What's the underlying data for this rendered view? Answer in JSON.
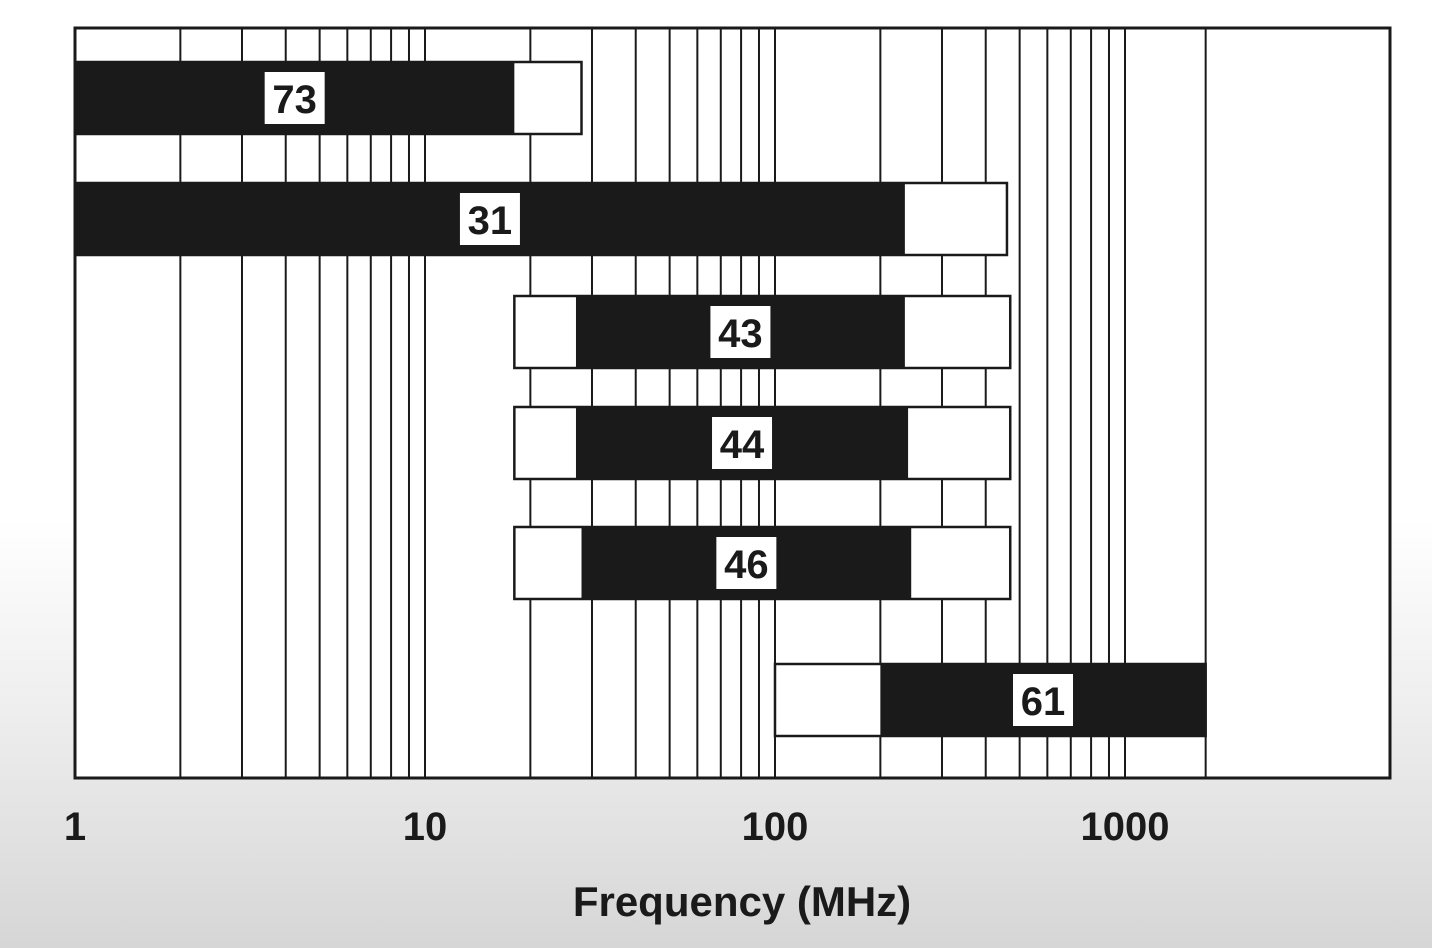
{
  "chart_data": {
    "type": "bar",
    "orientation": "horizontal",
    "x_scale": "log",
    "xlim": [
      1,
      3000
    ],
    "xlabel": "Frequency (MHz)",
    "x_ticks": [
      {
        "value": 1,
        "label": "1"
      },
      {
        "value": 10,
        "label": "10"
      },
      {
        "value": 100,
        "label": "100"
      },
      {
        "value": 1000,
        "label": "1000"
      }
    ],
    "grid": true,
    "minor_grid_values": [
      2,
      3,
      4,
      5,
      6,
      7,
      8,
      9,
      20,
      30,
      40,
      50,
      60,
      70,
      80,
      90,
      200,
      300,
      400,
      500,
      600,
      700,
      800,
      900,
      1700
    ],
    "colors": {
      "filled": "#1a1a1a",
      "outline": "#1a1a1a",
      "empty": "#ffffff"
    },
    "bands": [
      {
        "label": "73",
        "outer": [
          1,
          28
        ],
        "filled": [
          1,
          18
        ]
      },
      {
        "label": "31",
        "outer": [
          1,
          460
        ],
        "filled": [
          1,
          235
        ]
      },
      {
        "label": "43",
        "outer": [
          18,
          470
        ],
        "filled": [
          27,
          235
        ]
      },
      {
        "label": "44",
        "outer": [
          18,
          470
        ],
        "filled": [
          27,
          240
        ]
      },
      {
        "label": "46",
        "outer": [
          18,
          470
        ],
        "filled": [
          28,
          245
        ]
      },
      {
        "label": "61",
        "outer": [
          100,
          1700
        ],
        "filled": [
          200,
          1700
        ]
      }
    ]
  }
}
